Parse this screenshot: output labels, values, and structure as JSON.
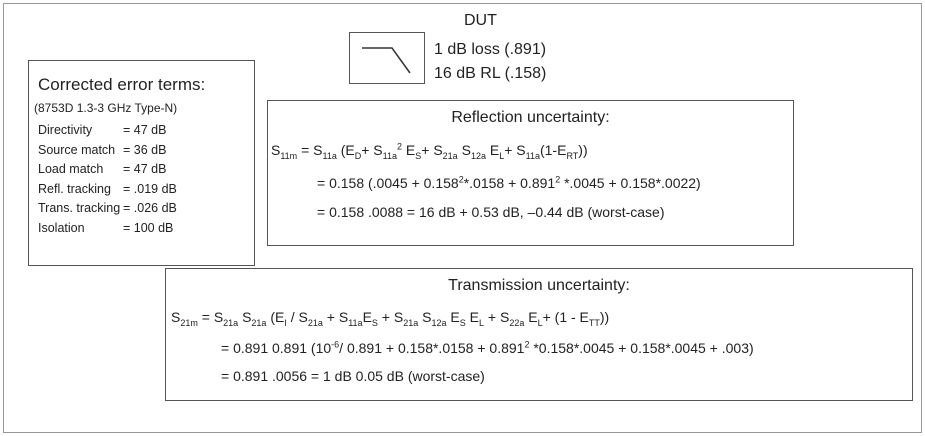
{
  "dut": {
    "title": "DUT",
    "lines": [
      "1 dB loss (.891)",
      "16 dB RL (.158)"
    ]
  },
  "error_terms": {
    "title": "Corrected error terms:",
    "subtitle": "(8753D 1.3-3 GHz Type-N)",
    "rows": [
      [
        "Directivity",
        "= 47 dB"
      ],
      [
        "Source match",
        "= 36 dB"
      ],
      [
        "Load match",
        "= 47 dB"
      ],
      [
        "Refl. tracking",
        "= .019 dB"
      ],
      [
        "Trans. tracking",
        "= .026 dB"
      ],
      [
        "Isolation",
        "= 100 dB"
      ]
    ]
  },
  "reflection": {
    "title": "Reflection uncertainty:",
    "lines": [
      [
        "S",
        {
          "sub": "11m"
        },
        " = S",
        {
          "sub": "11a"
        },
        " (E",
        {
          "sub": "D"
        },
        "+ S",
        {
          "sub": "11a"
        },
        {
          "sup": "2"
        },
        " E",
        {
          "sub": "S"
        },
        "+ S",
        {
          "sub": "21a"
        },
        " S",
        {
          "sub": "12a"
        },
        " E",
        {
          "sub": "L"
        },
        "+ S",
        {
          "sub": "11a"
        },
        "(1-E",
        {
          "sub": "RT"
        },
        "))"
      ],
      [
        "= 0.158 (.0045 + 0.158",
        {
          "sup": "2"
        },
        "*.0158 + 0.891",
        {
          "sup": "2"
        },
        " *.0045 + 0.158*.0022)"
      ],
      [
        "= 0.158 .0088 = 16 dB + 0.53 dB, –0.44 dB (worst-case)"
      ]
    ]
  },
  "transmission": {
    "title": "Transmission uncertainty:",
    "lines": [
      [
        "S",
        {
          "sub": "21m"
        },
        " = S",
        {
          "sub": "21a"
        },
        " S",
        {
          "sub": "21a"
        },
        " (E",
        {
          "sub": "I"
        },
        " / S",
        {
          "sub": "21a"
        },
        " + S",
        {
          "sub": "11a"
        },
        "E",
        {
          "sub": "S"
        },
        " + S",
        {
          "sub": "21a"
        },
        " S",
        {
          "sub": "12a"
        },
        " E",
        {
          "sub": "S"
        },
        " E",
        {
          "sub": "L"
        },
        " + S",
        {
          "sub": "22a"
        },
        " E",
        {
          "sub": "L"
        },
        "+ (1 - E",
        {
          "sub": "TT"
        },
        "))"
      ],
      [
        "= 0.891 0.891 (10",
        {
          "sup": "-6"
        },
        "/ 0.891 + 0.158*.0158 + 0.891",
        {
          "sup": "2"
        },
        " *0.158*.0045 + 0.158*.0045 + .003)"
      ],
      [
        "= 0.891 .0056 = 1 dB 0.05 dB (worst-case)"
      ]
    ]
  }
}
